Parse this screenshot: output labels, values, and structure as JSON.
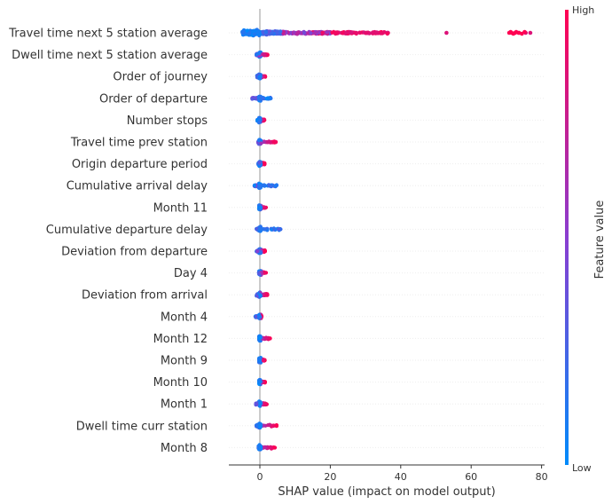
{
  "chart_data": {
    "type": "scatter",
    "subtype": "shap-beeswarm",
    "title": "",
    "xlabel": "SHAP value (impact on model output)",
    "xlim": [
      -9,
      80
    ],
    "xticks": [
      0,
      20,
      40,
      60,
      80
    ],
    "xtick_labels": [
      "0",
      "20",
      "40",
      "60",
      "80"
    ],
    "colorbar": {
      "label": "Feature value",
      "high_label": "High",
      "low_label": "Low",
      "low_color": "#008bfb",
      "high_color": "#ff0052"
    },
    "zero_line": true,
    "features": [
      {
        "name": "Travel time next 5 station average",
        "min": -5,
        "max": 77,
        "blue_max": 6,
        "clusters": [
          [
            53,
            0.7
          ],
          [
            71.5,
            0.85
          ],
          [
            72.5,
            0.85
          ],
          [
            73.5,
            0.85
          ],
          [
            75.5,
            0.7
          ],
          [
            76.8,
            0.7
          ]
        ]
      },
      {
        "name": "Dwell time next 5 station average",
        "min": -1,
        "max": 2.2,
        "blue_max": 0.6,
        "clusters": []
      },
      {
        "name": "Order of journey",
        "min": -0.8,
        "max": 1.6,
        "blue_max": 0.3,
        "clusters": []
      },
      {
        "name": "Order of departure",
        "min": -2.2,
        "max": 3.2,
        "blue_max": 3.2,
        "clusters": []
      },
      {
        "name": "Number stops",
        "min": -0.8,
        "max": 1.3,
        "blue_max": 0.3,
        "clusters": []
      },
      {
        "name": "Travel time prev station",
        "min": -0.5,
        "max": 4.5,
        "blue_max": 0.2,
        "clusters": [
          [
            4.5,
            0.8
          ]
        ]
      },
      {
        "name": "Origin departure period",
        "min": -0.5,
        "max": 1.4,
        "blue_max": 0.2,
        "clusters": []
      },
      {
        "name": "Cumulative arrival delay",
        "min": -1.6,
        "max": 4.8,
        "blue_max": 4.8,
        "clusters": []
      },
      {
        "name": "Month 11",
        "min": -0.2,
        "max": 1.8,
        "blue_max": 0.1,
        "clusters": []
      },
      {
        "name": "Cumulative departure delay",
        "min": -1,
        "max": 6,
        "blue_max": 6,
        "clusters": []
      },
      {
        "name": "Deviation from departure",
        "min": -1,
        "max": 1.5,
        "blue_max": 0.3,
        "clusters": []
      },
      {
        "name": "Day 4",
        "min": -0.3,
        "max": 1.8,
        "blue_max": 0.1,
        "clusters": []
      },
      {
        "name": "Deviation from arrival",
        "min": -1,
        "max": 2.2,
        "blue_max": 0.5,
        "clusters": []
      },
      {
        "name": "Month 4",
        "min": -1.3,
        "max": 0.5,
        "blue_max": 0.5,
        "clusters": []
      },
      {
        "name": "Month 12",
        "min": -0.2,
        "max": 3,
        "blue_max": 0.1,
        "clusters": []
      },
      {
        "name": "Month 9",
        "min": -0.2,
        "max": 1.4,
        "blue_max": 0.1,
        "clusters": []
      },
      {
        "name": "Month 10",
        "min": -0.2,
        "max": 1.5,
        "blue_max": 0.1,
        "clusters": []
      },
      {
        "name": "Month 1",
        "min": -1.2,
        "max": 2,
        "blue_max": 0.3,
        "clusters": []
      },
      {
        "name": "Dwell time curr station",
        "min": -1,
        "max": 4.8,
        "blue_max": 1,
        "clusters": []
      },
      {
        "name": "Month 8",
        "min": -0.4,
        "max": 4.3,
        "blue_max": 0.1,
        "clusters": []
      }
    ]
  }
}
